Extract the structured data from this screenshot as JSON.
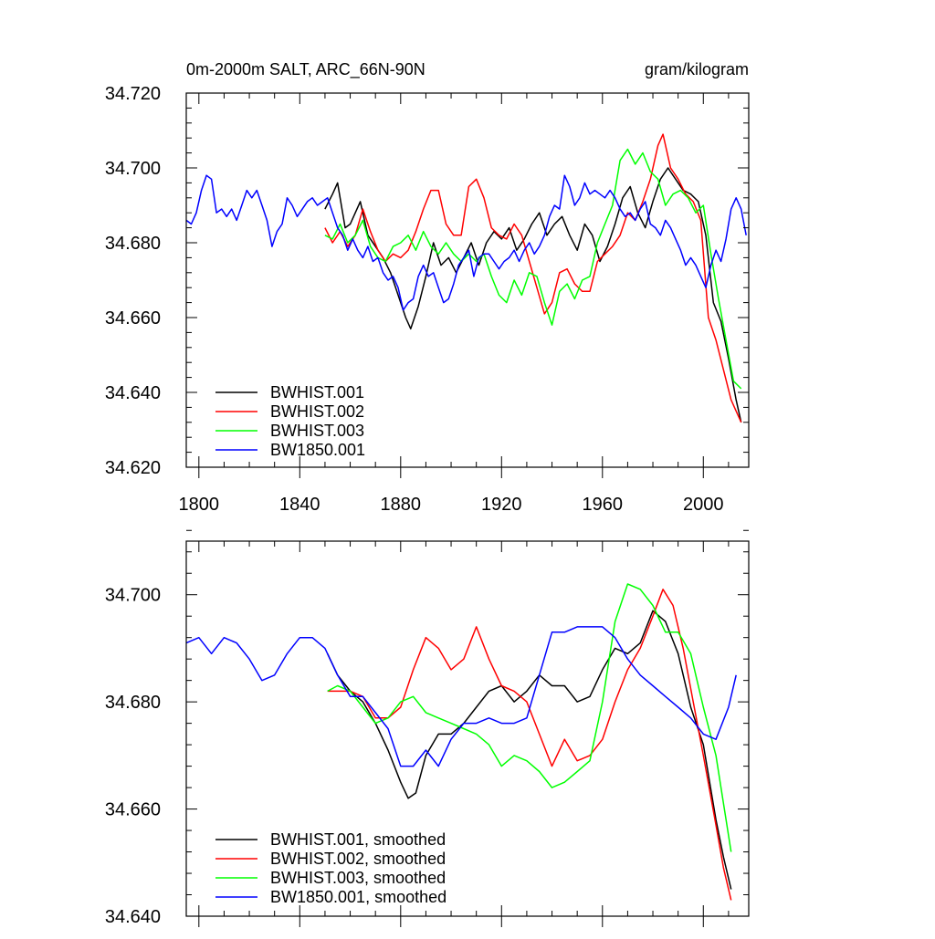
{
  "chart_data": [
    {
      "type": "line",
      "title_left": "0m-2000m SALT, ARC_66N-90N",
      "title_right": "gram/kilogram",
      "xlabel": "",
      "ylabel": "",
      "xlim": [
        1795,
        2018
      ],
      "ylim": [
        34.62,
        34.72
      ],
      "x_ticks": [
        1800,
        1840,
        1880,
        1920,
        1960,
        2000
      ],
      "y_ticks": [
        34.62,
        34.64,
        34.66,
        34.68,
        34.7,
        34.72
      ],
      "y_tick_labels": [
        "34.620",
        "34.640",
        "34.660",
        "34.680",
        "34.700",
        "34.720"
      ],
      "legend": [
        "BWHIST.001",
        "BWHIST.002",
        "BWHIST.003",
        "BW1850.001"
      ],
      "series": [
        {
          "name": "BWHIST.001",
          "color": "#000000",
          "x": [
            1850,
            1853,
            1855,
            1858,
            1860,
            1862,
            1864,
            1867,
            1870,
            1873,
            1876,
            1878,
            1880,
            1882,
            1884,
            1887,
            1890,
            1893,
            1896,
            1899,
            1902,
            1905,
            1908,
            1911,
            1914,
            1917,
            1920,
            1923,
            1926,
            1929,
            1932,
            1935,
            1938,
            1941,
            1944,
            1947,
            1950,
            1953,
            1956,
            1959,
            1962,
            1965,
            1968,
            1971,
            1974,
            1977,
            1980,
            1983,
            1986,
            1989,
            1992,
            1995,
            1998,
            2001,
            2004,
            2007,
            2010,
            2013,
            2015
          ],
          "values": [
            34.689,
            34.693,
            34.696,
            34.684,
            34.685,
            34.688,
            34.691,
            34.682,
            34.679,
            34.676,
            34.672,
            34.668,
            34.664,
            34.66,
            34.657,
            34.663,
            34.671,
            34.68,
            34.674,
            34.676,
            34.672,
            34.676,
            34.68,
            34.674,
            34.68,
            34.683,
            34.681,
            34.684,
            34.678,
            34.681,
            34.685,
            34.688,
            34.682,
            34.685,
            34.687,
            34.682,
            34.678,
            34.685,
            34.682,
            34.675,
            34.679,
            34.685,
            34.692,
            34.695,
            34.688,
            34.684,
            34.691,
            34.697,
            34.7,
            34.697,
            34.694,
            34.693,
            34.691,
            34.682,
            34.664,
            34.659,
            34.649,
            34.638,
            34.632
          ]
        },
        {
          "name": "BWHIST.002",
          "color": "#ff0000",
          "x": [
            1850,
            1853,
            1856,
            1859,
            1862,
            1865,
            1868,
            1871,
            1874,
            1877,
            1880,
            1883,
            1886,
            1889,
            1892,
            1895,
            1898,
            1901,
            1904,
            1907,
            1910,
            1913,
            1916,
            1919,
            1922,
            1925,
            1928,
            1931,
            1934,
            1937,
            1940,
            1943,
            1946,
            1949,
            1952,
            1955,
            1958,
            1961,
            1964,
            1967,
            1970,
            1973,
            1976,
            1979,
            1982,
            1984,
            1987,
            1990,
            1993,
            1996,
            1999,
            2002,
            2005,
            2008,
            2011,
            2015
          ],
          "values": [
            34.684,
            34.68,
            34.683,
            34.679,
            34.682,
            34.689,
            34.683,
            34.678,
            34.675,
            34.677,
            34.676,
            34.678,
            34.683,
            34.689,
            34.694,
            34.694,
            34.685,
            34.682,
            34.682,
            34.695,
            34.697,
            34.692,
            34.684,
            34.682,
            34.681,
            34.685,
            34.682,
            34.675,
            34.668,
            34.661,
            34.664,
            34.672,
            34.673,
            34.669,
            34.667,
            34.667,
            34.675,
            34.677,
            34.679,
            34.682,
            34.688,
            34.686,
            34.691,
            34.697,
            34.706,
            34.709,
            34.7,
            34.697,
            34.693,
            34.691,
            34.686,
            34.66,
            34.654,
            34.646,
            34.638,
            34.632
          ]
        },
        {
          "name": "BWHIST.003",
          "color": "#00ff00",
          "x": [
            1850,
            1853,
            1856,
            1859,
            1862,
            1865,
            1868,
            1871,
            1874,
            1877,
            1880,
            1883,
            1886,
            1889,
            1892,
            1895,
            1898,
            1901,
            1904,
            1907,
            1910,
            1913,
            1916,
            1919,
            1922,
            1925,
            1928,
            1931,
            1934,
            1937,
            1940,
            1943,
            1946,
            1949,
            1952,
            1955,
            1958,
            1961,
            1964,
            1967,
            1970,
            1973,
            1976,
            1979,
            1982,
            1985,
            1988,
            1991,
            1994,
            1997,
            2000,
            2003,
            2006,
            2009,
            2012,
            2015
          ],
          "values": [
            34.682,
            34.681,
            34.685,
            34.68,
            34.682,
            34.686,
            34.679,
            34.676,
            34.675,
            34.679,
            34.68,
            34.682,
            34.678,
            34.683,
            34.679,
            34.677,
            34.68,
            34.677,
            34.675,
            34.677,
            34.675,
            34.677,
            34.671,
            34.666,
            34.664,
            34.67,
            34.666,
            34.672,
            34.671,
            34.664,
            34.658,
            34.667,
            34.669,
            34.665,
            34.67,
            34.671,
            34.68,
            34.685,
            34.69,
            34.702,
            34.705,
            34.701,
            34.704,
            34.699,
            34.697,
            34.69,
            34.693,
            34.694,
            34.692,
            34.688,
            34.69,
            34.677,
            34.665,
            34.654,
            34.643,
            34.641
          ]
        },
        {
          "name": "BW1850.001",
          "color": "#0000ff",
          "x": [
            1795,
            1797,
            1799,
            1801,
            1803,
            1805,
            1807,
            1809,
            1811,
            1813,
            1815,
            1817,
            1819,
            1821,
            1823,
            1825,
            1827,
            1829,
            1831,
            1833,
            1835,
            1837,
            1839,
            1841,
            1843,
            1845,
            1847,
            1849,
            1851,
            1853,
            1855,
            1857,
            1859,
            1861,
            1863,
            1865,
            1867,
            1869,
            1871,
            1873,
            1875,
            1877,
            1879,
            1881,
            1883,
            1885,
            1887,
            1889,
            1891,
            1893,
            1895,
            1897,
            1899,
            1901,
            1903,
            1905,
            1907,
            1909,
            1911,
            1913,
            1915,
            1917,
            1919,
            1921,
            1923,
            1925,
            1927,
            1929,
            1931,
            1933,
            1935,
            1937,
            1939,
            1941,
            1943,
            1945,
            1947,
            1949,
            1951,
            1953,
            1955,
            1957,
            1959,
            1961,
            1963,
            1965,
            1967,
            1969,
            1971,
            1973,
            1975,
            1977,
            1979,
            1981,
            1983,
            1985,
            1987,
            1989,
            1991,
            1993,
            1995,
            1997,
            1999,
            2001,
            2003,
            2005,
            2007,
            2009,
            2011,
            2013,
            2015,
            2017
          ],
          "values": [
            34.686,
            34.685,
            34.688,
            34.694,
            34.698,
            34.697,
            34.688,
            34.689,
            34.687,
            34.689,
            34.686,
            34.69,
            34.694,
            34.692,
            34.694,
            34.69,
            34.686,
            34.679,
            34.683,
            34.685,
            34.692,
            34.69,
            34.687,
            34.689,
            34.691,
            34.692,
            34.69,
            34.691,
            34.692,
            34.688,
            34.684,
            34.682,
            34.678,
            34.681,
            34.678,
            34.676,
            34.679,
            34.675,
            34.676,
            34.672,
            34.67,
            34.671,
            34.668,
            34.662,
            34.664,
            34.665,
            34.671,
            34.674,
            34.671,
            34.672,
            34.668,
            34.664,
            34.665,
            34.669,
            34.674,
            34.676,
            34.678,
            34.671,
            34.676,
            34.677,
            34.677,
            34.675,
            34.673,
            34.675,
            34.676,
            34.678,
            34.675,
            34.678,
            34.68,
            34.677,
            34.679,
            34.682,
            34.687,
            34.69,
            34.689,
            34.698,
            34.695,
            34.69,
            34.692,
            34.696,
            34.693,
            34.694,
            34.693,
            34.692,
            34.694,
            34.692,
            34.689,
            34.687,
            34.688,
            34.686,
            34.689,
            34.691,
            34.685,
            34.684,
            34.682,
            34.686,
            34.684,
            34.681,
            34.678,
            34.674,
            34.676,
            34.674,
            34.671,
            34.668,
            34.674,
            34.678,
            34.675,
            34.681,
            34.689,
            34.692,
            34.689,
            34.682
          ]
        }
      ]
    },
    {
      "type": "line",
      "title_left": "",
      "title_right": "",
      "xlabel": "",
      "ylabel": "",
      "xlim": [
        1795,
        2018
      ],
      "ylim": [
        34.64,
        34.71
      ],
      "x_ticks": [
        1800,
        1840,
        1880,
        1920,
        1960,
        2000
      ],
      "y_ticks": [
        34.64,
        34.66,
        34.68,
        34.7
      ],
      "y_tick_labels": [
        "34.640",
        "34.660",
        "34.680",
        "34.700"
      ],
      "legend": [
        "BWHIST.001, smoothed",
        "BWHIST.002, smoothed",
        "BWHIST.003, smoothed",
        "BW1850.001, smoothed"
      ],
      "series": [
        {
          "name": "BWHIST.001, smoothed",
          "color": "#000000",
          "x": [
            1851,
            1855,
            1860,
            1865,
            1870,
            1875,
            1880,
            1883,
            1886,
            1890,
            1895,
            1900,
            1905,
            1910,
            1915,
            1920,
            1925,
            1930,
            1935,
            1940,
            1945,
            1950,
            1955,
            1960,
            1965,
            1970,
            1975,
            1980,
            1985,
            1990,
            1995,
            2000,
            2005,
            2008,
            2011
          ],
          "values": [
            34.689,
            34.685,
            34.682,
            34.68,
            34.676,
            34.671,
            34.665,
            34.662,
            34.663,
            34.67,
            34.674,
            34.674,
            34.676,
            34.679,
            34.682,
            34.683,
            34.68,
            34.682,
            34.685,
            34.683,
            34.683,
            34.68,
            34.681,
            34.686,
            34.69,
            34.689,
            34.691,
            34.697,
            34.695,
            34.689,
            34.679,
            34.672,
            34.658,
            34.651,
            34.645
          ]
        },
        {
          "name": "BWHIST.002, smoothed",
          "color": "#ff0000",
          "x": [
            1851,
            1855,
            1860,
            1865,
            1870,
            1875,
            1880,
            1885,
            1890,
            1895,
            1900,
            1905,
            1910,
            1915,
            1920,
            1925,
            1930,
            1935,
            1940,
            1945,
            1950,
            1955,
            1960,
            1965,
            1970,
            1975,
            1980,
            1984,
            1988,
            1992,
            1996,
            2000,
            2005,
            2008,
            2011
          ],
          "values": [
            34.682,
            34.682,
            34.682,
            34.681,
            34.677,
            34.677,
            34.679,
            34.686,
            34.692,
            34.69,
            34.686,
            34.688,
            34.694,
            34.688,
            34.683,
            34.682,
            34.68,
            34.674,
            34.668,
            34.673,
            34.669,
            34.67,
            34.673,
            34.68,
            34.686,
            34.69,
            34.696,
            34.701,
            34.698,
            34.69,
            34.68,
            34.67,
            34.657,
            34.649,
            34.643
          ]
        },
        {
          "name": "BWHIST.003, smoothed",
          "color": "#00ff00",
          "x": [
            1851,
            1855,
            1860,
            1865,
            1870,
            1875,
            1880,
            1885,
            1890,
            1895,
            1900,
            1905,
            1910,
            1915,
            1920,
            1925,
            1930,
            1935,
            1940,
            1945,
            1950,
            1955,
            1960,
            1965,
            1970,
            1975,
            1980,
            1985,
            1990,
            1995,
            2000,
            2005,
            2008,
            2011
          ],
          "values": [
            34.682,
            34.683,
            34.682,
            34.679,
            34.676,
            34.677,
            34.68,
            34.681,
            34.678,
            34.677,
            34.676,
            34.675,
            34.674,
            34.672,
            34.668,
            34.67,
            34.669,
            34.667,
            34.664,
            34.665,
            34.667,
            34.669,
            34.68,
            34.695,
            34.702,
            34.701,
            34.698,
            34.693,
            34.693,
            34.689,
            34.679,
            34.67,
            34.661,
            34.652
          ]
        },
        {
          "name": "BW1850.001, smoothed",
          "color": "#0000ff",
          "x": [
            1795,
            1800,
            1805,
            1810,
            1815,
            1820,
            1825,
            1830,
            1835,
            1840,
            1845,
            1850,
            1855,
            1860,
            1865,
            1870,
            1875,
            1880,
            1885,
            1890,
            1895,
            1900,
            1905,
            1910,
            1915,
            1920,
            1925,
            1930,
            1935,
            1940,
            1945,
            1950,
            1955,
            1960,
            1965,
            1970,
            1975,
            1980,
            1985,
            1990,
            1995,
            2000,
            2005,
            2010,
            2013
          ],
          "values": [
            34.691,
            34.692,
            34.689,
            34.692,
            34.691,
            34.688,
            34.684,
            34.685,
            34.689,
            34.692,
            34.692,
            34.69,
            34.685,
            34.681,
            34.681,
            34.678,
            34.675,
            34.668,
            34.668,
            34.671,
            34.668,
            34.673,
            34.676,
            34.676,
            34.677,
            34.676,
            34.676,
            34.677,
            34.685,
            34.693,
            34.693,
            34.694,
            34.694,
            34.694,
            34.692,
            34.688,
            34.685,
            34.683,
            34.681,
            34.679,
            34.677,
            34.674,
            34.673,
            34.679,
            34.685
          ]
        }
      ]
    }
  ]
}
